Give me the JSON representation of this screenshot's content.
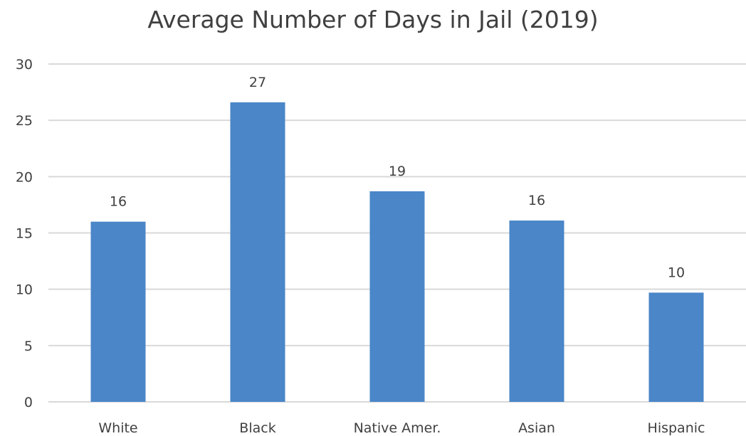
{
  "chart_data": {
    "type": "bar",
    "title": "Average Number of Days in Jail (2019)",
    "categories": [
      "White",
      "Black",
      "Native Amer.",
      "Asian",
      "Hispanic"
    ],
    "values": [
      16,
      26.6,
      18.7,
      16.1,
      9.7
    ],
    "data_labels": [
      "16",
      "27",
      "19",
      "16",
      "10"
    ],
    "xlabel": "",
    "ylabel": "",
    "ylim": [
      0,
      30
    ],
    "yticks": [
      "0",
      "5",
      "10",
      "15",
      "20",
      "25",
      "30"
    ],
    "grid": true,
    "legend": "none",
    "bar_color": "#4a86c8"
  }
}
